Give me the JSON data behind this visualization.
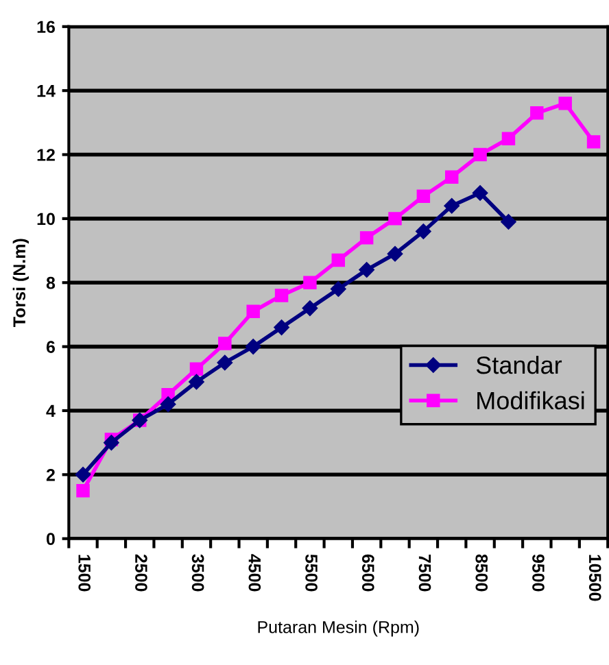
{
  "chart_data": {
    "type": "line",
    "xlabel": "Putaran Mesin (Rpm)",
    "ylabel": "Torsi (N.m)",
    "categories": [
      "1500",
      null,
      "2500",
      null,
      "3500",
      null,
      "4500",
      null,
      "5500",
      null,
      "6500",
      null,
      "7500",
      null,
      "8500",
      null,
      "9500",
      null,
      "10500"
    ],
    "series": [
      {
        "name": "Standar",
        "color": "#000080",
        "marker": "diamond",
        "values": [
          2.0,
          3.0,
          3.7,
          4.2,
          4.9,
          5.5,
          6.0,
          6.6,
          7.2,
          7.8,
          8.4,
          8.9,
          9.6,
          10.4,
          10.8,
          9.9,
          null,
          null,
          null
        ]
      },
      {
        "name": "Modifikasi",
        "color": "#ff00ff",
        "marker": "square",
        "values": [
          1.5,
          3.1,
          3.7,
          4.5,
          5.3,
          6.1,
          7.1,
          7.6,
          8.0,
          8.7,
          9.4,
          10.0,
          10.7,
          11.3,
          12.0,
          12.5,
          13.3,
          13.6,
          12.4
        ]
      }
    ],
    "ylim": [
      0,
      16
    ],
    "yticks": [
      0,
      2,
      4,
      6,
      8,
      10,
      12,
      14,
      16
    ],
    "grid": "y",
    "legend": "right",
    "line_style": "solid"
  }
}
